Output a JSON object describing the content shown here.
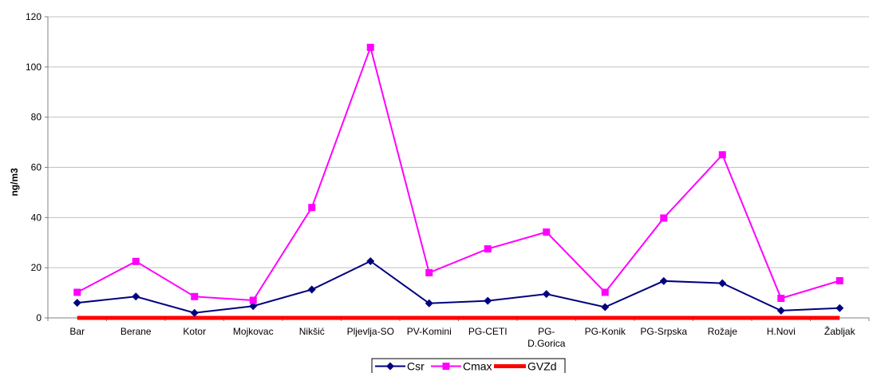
{
  "chart_data": {
    "type": "line",
    "title": "",
    "xlabel": "",
    "ylabel": "ng/m3",
    "ylim": [
      0,
      120
    ],
    "yticks": [
      0,
      20,
      40,
      60,
      80,
      100,
      120
    ],
    "grid": true,
    "legend_position": "bottom",
    "categories": [
      "Bar",
      "Berane",
      "Kotor",
      "Mojkovac",
      "Nikšić",
      "Pljevlja-SO",
      "PV-Komini",
      "PG-CETI",
      "PG-\nD.Gorica",
      "PG-Konik",
      "PG-Srpska",
      "Rožaje",
      "H.Novi",
      "Žabljak"
    ],
    "series": [
      {
        "name": "Csr",
        "color": "#00007F",
        "marker": "diamond",
        "values": [
          6,
          8.5,
          2,
          4.7,
          11.3,
          22.6,
          5.8,
          6.8,
          9.5,
          4.3,
          14.7,
          13.8,
          2.9,
          3.9
        ]
      },
      {
        "name": "Cmax",
        "color": "#FF00FF",
        "marker": "square",
        "values": [
          10.2,
          22.5,
          8.5,
          7,
          44,
          107.8,
          18,
          27.5,
          34.2,
          10.2,
          39.8,
          65,
          7.8,
          14.8
        ]
      },
      {
        "name": "GVZd",
        "color": "#FF0000",
        "marker": "none",
        "values": [
          0,
          0,
          0,
          0,
          0,
          0,
          0,
          0,
          0,
          0,
          0,
          0,
          0,
          0
        ]
      }
    ]
  }
}
